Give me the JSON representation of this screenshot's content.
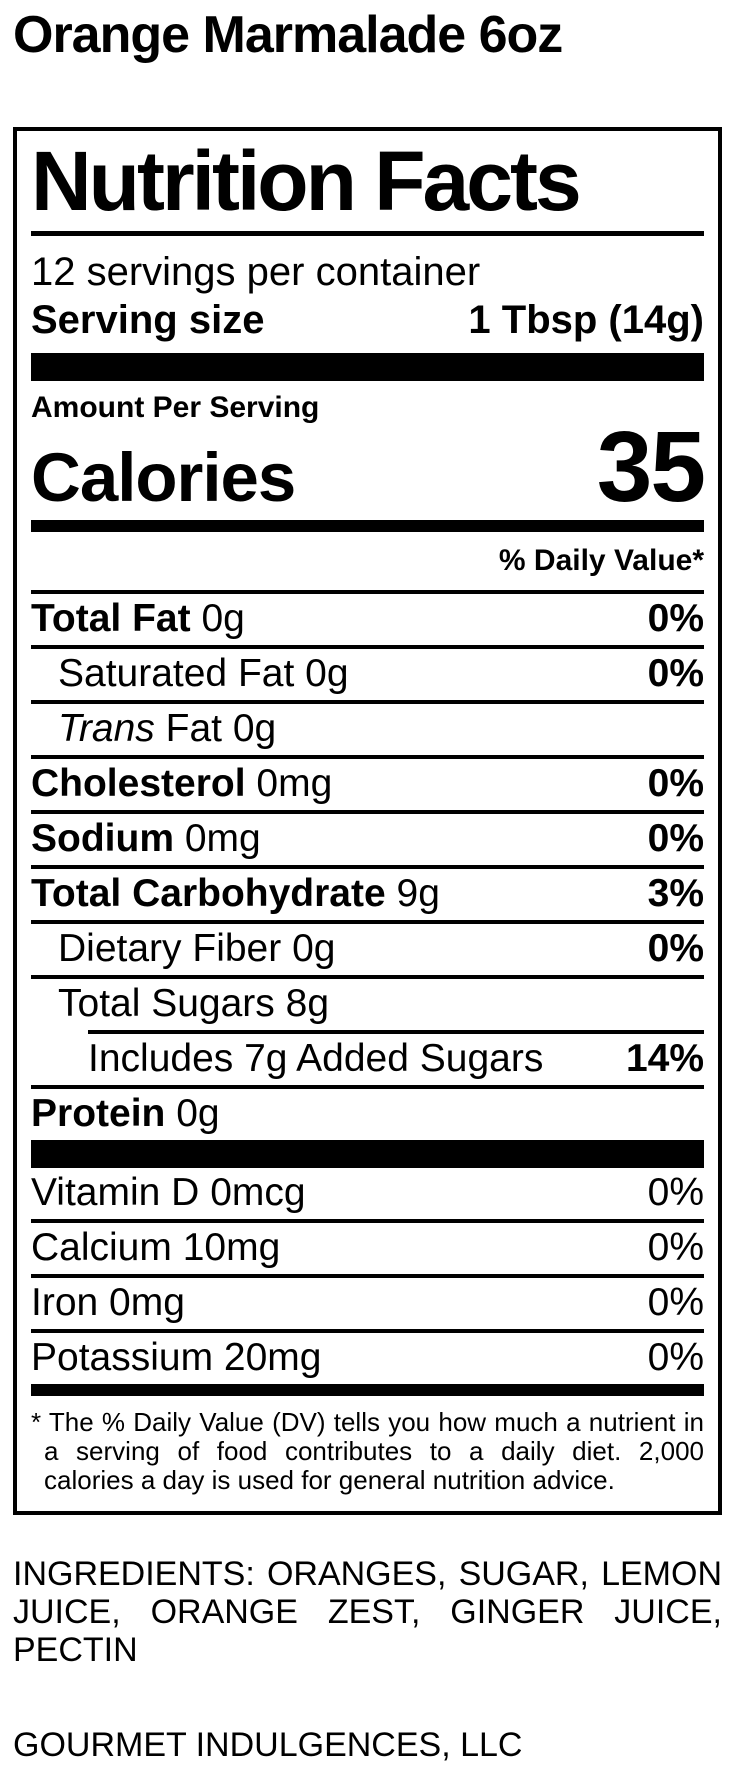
{
  "colors": {
    "text": "#000000",
    "background": "#ffffff"
  },
  "product_title": "Orange Marmalade 6oz",
  "nutrition_panel": {
    "title": "Nutrition Facts",
    "servings_per_container": "12 servings per container",
    "serving_size": {
      "label": "Serving size",
      "value": "1 Tbsp (14g)"
    },
    "amount_per_serving_label": "Amount Per Serving",
    "calories": {
      "label": "Calories",
      "value": "35"
    },
    "daily_value_header": "% Daily Value*",
    "nutrients": [
      {
        "name": "Total Fat",
        "amount": "0g",
        "dv": "0%"
      },
      {
        "name": "Saturated Fat",
        "amount": "0g",
        "dv": "0%"
      },
      {
        "name_italic": "Trans",
        "name": "Fat",
        "amount": "0g",
        "dv": ""
      },
      {
        "name": "Cholesterol",
        "amount": "0mg",
        "dv": "0%"
      },
      {
        "name": "Sodium",
        "amount": "0mg",
        "dv": "0%"
      },
      {
        "name": "Total Carbohydrate",
        "amount": "9g",
        "dv": "3%"
      },
      {
        "name": "Dietary Fiber",
        "amount": "0g",
        "dv": "0%"
      },
      {
        "name": "Total Sugars",
        "amount": "8g",
        "dv": ""
      },
      {
        "name": "Includes 7g Added Sugars",
        "amount": "",
        "dv": "14%"
      },
      {
        "name": "Protein",
        "amount": "0g",
        "dv": ""
      }
    ],
    "micronutrients": [
      {
        "name": "Vitamin D",
        "amount": "0mcg",
        "dv": "0%"
      },
      {
        "name": "Calcium",
        "amount": "10mg",
        "dv": "0%"
      },
      {
        "name": "Iron",
        "amount": "0mg",
        "dv": "0%"
      },
      {
        "name": "Potassium",
        "amount": "20mg",
        "dv": "0%"
      }
    ],
    "footnote": "* The % Daily Value (DV) tells you how much a nutrient in a serving of food contributes to a daily diet. 2,000 calories a day is used for general nutrition advice."
  },
  "ingredients": "INGREDIENTS: ORANGES, SUGAR, LEMON JUICE, ORANGE ZEST, GINGER JUICE, PECTIN",
  "manufacturer": "GOURMET INDULGENCES, LLC"
}
